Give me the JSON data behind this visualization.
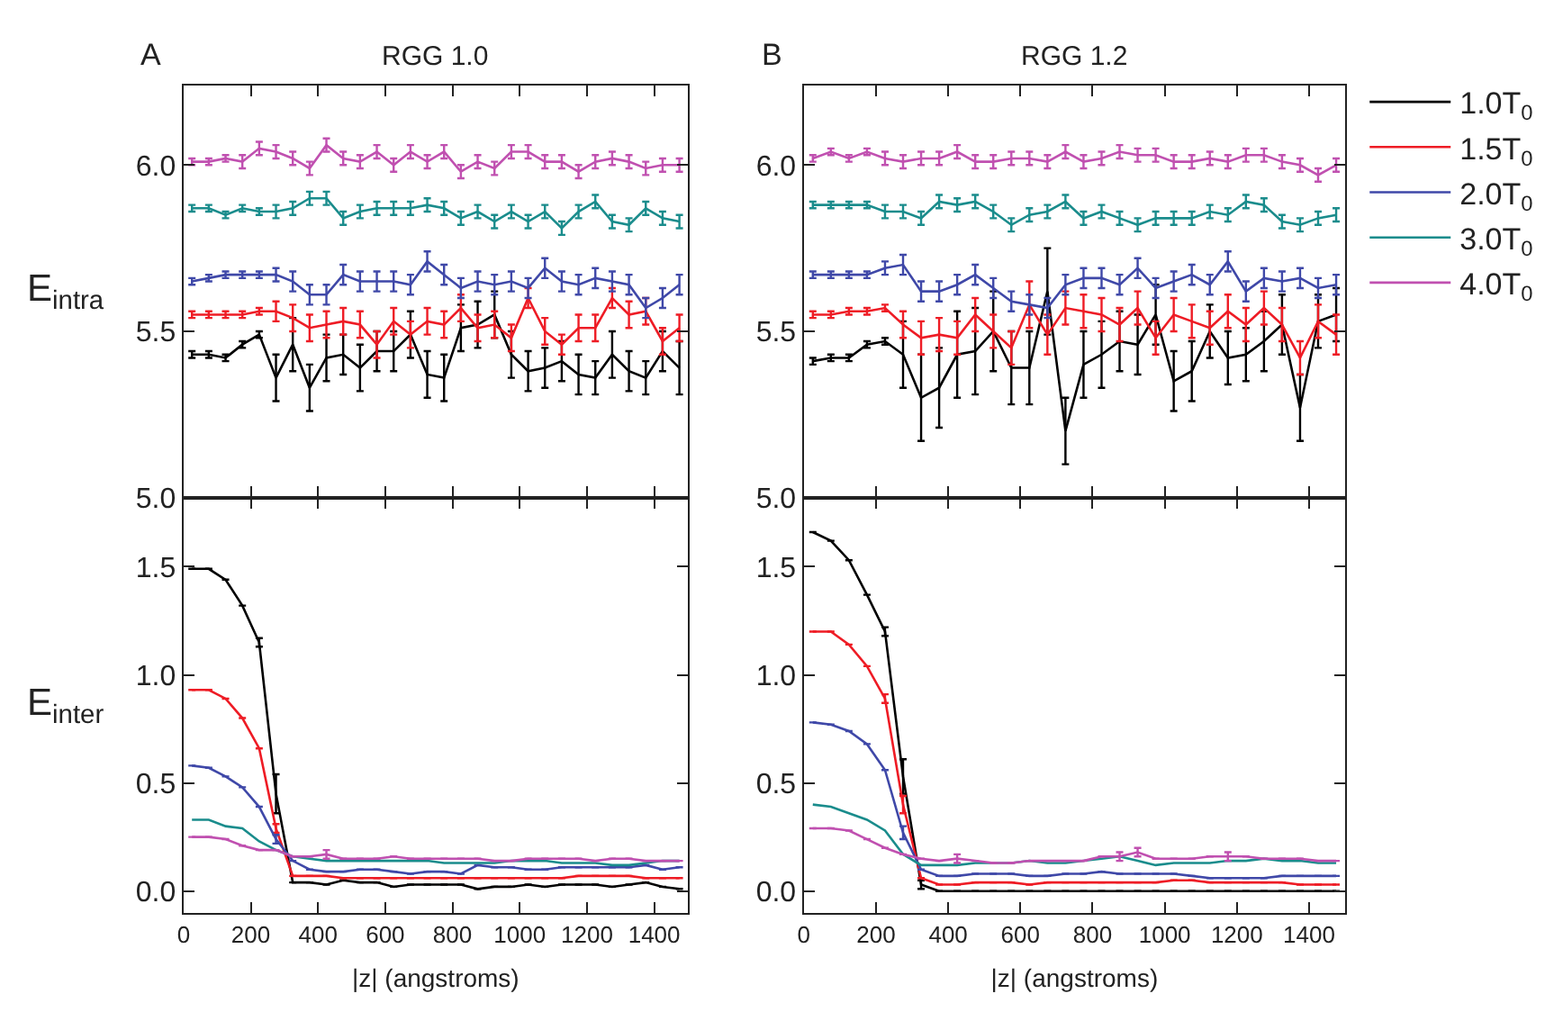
{
  "chart_data": [
    {
      "type": "line",
      "title": "RGG 1.0",
      "ylabel": "E$_{intra}$",
      "annotations": [
        "A"
      ],
      "legend": "right",
      "marker": "none",
      "line_style": "solid",
      "tick_labels": "y",
      "x": [
        25,
        75,
        125,
        175,
        225,
        275,
        325,
        375,
        425,
        475,
        525,
        575,
        625,
        675,
        725,
        775,
        825,
        875,
        925,
        975,
        1025,
        1075,
        1125,
        1175,
        1225,
        1275,
        1325,
        1375,
        1425,
        1475
      ],
      "xlim": [
        0,
        1500
      ],
      "xticks": [
        0,
        200,
        400,
        600,
        800,
        1000,
        1200,
        1400
      ],
      "ylim": [
        5.0,
        6.24
      ],
      "yticks": [
        {
          "value": 5.0,
          "label": "5.0"
        },
        5.5,
        {
          "value": 6.0,
          "label": "6.0"
        }
      ],
      "series": [
        {
          "name": "1.0T$_{0}$",
          "color": "#000000",
          "values": [
            5.43,
            5.43,
            5.42,
            5.46,
            5.49,
            5.36,
            5.46,
            5.33,
            5.42,
            5.43,
            5.39,
            5.44,
            5.44,
            5.49,
            5.37,
            5.36,
            5.51,
            5.52,
            5.55,
            5.43,
            5.38,
            5.39,
            5.41,
            5.37,
            5.36,
            5.43,
            5.38,
            5.36,
            5.44,
            5.39
          ],
          "errors": [
            0.01,
            0.01,
            0.01,
            0.01,
            0.01,
            0.07,
            0.08,
            0.07,
            0.07,
            0.06,
            0.07,
            0.06,
            0.06,
            0.07,
            0.07,
            0.07,
            0.07,
            0.07,
            0.07,
            0.07,
            0.06,
            0.06,
            0.06,
            0.06,
            0.05,
            0.07,
            0.06,
            0.05,
            0.06,
            0.08
          ]
        },
        {
          "name": "1.5T$_{0}$",
          "color": "#ee1c25",
          "values": [
            5.55,
            5.55,
            5.55,
            5.55,
            5.56,
            5.56,
            5.54,
            5.51,
            5.52,
            5.53,
            5.52,
            5.46,
            5.53,
            5.49,
            5.53,
            5.52,
            5.57,
            5.51,
            5.52,
            5.48,
            5.6,
            5.5,
            5.46,
            5.51,
            5.51,
            5.6,
            5.55,
            5.56,
            5.47,
            5.51
          ],
          "errors": [
            0.01,
            0.01,
            0.01,
            0.01,
            0.01,
            0.03,
            0.04,
            0.04,
            0.04,
            0.04,
            0.04,
            0.04,
            0.04,
            0.04,
            0.04,
            0.04,
            0.04,
            0.04,
            0.04,
            0.04,
            0.03,
            0.04,
            0.03,
            0.04,
            0.04,
            0.03,
            0.04,
            0.04,
            0.04,
            0.04
          ]
        },
        {
          "name": "2.0T$_{0}$",
          "color": "#3f48a8",
          "values": [
            5.65,
            5.66,
            5.67,
            5.67,
            5.67,
            5.67,
            5.65,
            5.61,
            5.61,
            5.67,
            5.65,
            5.65,
            5.65,
            5.64,
            5.71,
            5.67,
            5.63,
            5.65,
            5.64,
            5.65,
            5.63,
            5.69,
            5.65,
            5.64,
            5.66,
            5.65,
            5.64,
            5.57,
            5.6,
            5.64
          ],
          "errors": [
            0.01,
            0.01,
            0.01,
            0.01,
            0.01,
            0.02,
            0.03,
            0.03,
            0.03,
            0.03,
            0.03,
            0.03,
            0.03,
            0.03,
            0.03,
            0.03,
            0.03,
            0.03,
            0.03,
            0.03,
            0.03,
            0.03,
            0.03,
            0.03,
            0.03,
            0.03,
            0.03,
            0.03,
            0.03,
            0.03
          ]
        },
        {
          "name": "3.0T$_{0}$",
          "color": "#1a8c8c",
          "values": [
            5.87,
            5.87,
            5.85,
            5.87,
            5.86,
            5.86,
            5.87,
            5.9,
            5.9,
            5.84,
            5.86,
            5.87,
            5.87,
            5.87,
            5.88,
            5.87,
            5.84,
            5.86,
            5.83,
            5.86,
            5.83,
            5.86,
            5.81,
            5.86,
            5.89,
            5.83,
            5.82,
            5.87,
            5.84,
            5.83
          ],
          "errors": [
            0.01,
            0.01,
            0.01,
            0.01,
            0.01,
            0.02,
            0.02,
            0.02,
            0.02,
            0.02,
            0.02,
            0.02,
            0.02,
            0.02,
            0.02,
            0.02,
            0.02,
            0.02,
            0.02,
            0.02,
            0.02,
            0.02,
            0.02,
            0.02,
            0.02,
            0.02,
            0.02,
            0.02,
            0.02,
            0.02
          ]
        },
        {
          "name": "4.0T$_{0}$",
          "color": "#c050b0",
          "values": [
            6.01,
            6.01,
            6.02,
            6.01,
            6.05,
            6.04,
            6.02,
            5.99,
            6.06,
            6.02,
            6.01,
            6.04,
            6.0,
            6.04,
            6.01,
            6.04,
            5.98,
            6.01,
            5.99,
            6.04,
            6.04,
            6.01,
            6.01,
            5.98,
            6.01,
            6.02,
            6.01,
            5.99,
            6.0,
            6.0
          ],
          "errors": [
            0.01,
            0.01,
            0.01,
            0.02,
            0.02,
            0.02,
            0.02,
            0.02,
            0.02,
            0.02,
            0.02,
            0.02,
            0.02,
            0.02,
            0.02,
            0.02,
            0.02,
            0.02,
            0.02,
            0.02,
            0.02,
            0.02,
            0.02,
            0.02,
            0.02,
            0.02,
            0.02,
            0.02,
            0.02,
            0.02
          ]
        }
      ]
    },
    {
      "type": "line",
      "title": "RGG 1.2",
      "annotations": [
        "B"
      ],
      "marker": "none",
      "line_style": "solid",
      "tick_labels": "y",
      "x": [
        25,
        75,
        125,
        175,
        225,
        275,
        325,
        375,
        425,
        475,
        525,
        575,
        625,
        675,
        725,
        775,
        825,
        875,
        925,
        975,
        1025,
        1075,
        1125,
        1175,
        1225,
        1275,
        1325,
        1375,
        1425,
        1475
      ],
      "xlim": [
        0,
        1500
      ],
      "xticks": [
        0,
        200,
        400,
        600,
        800,
        1000,
        1200,
        1400
      ],
      "ylim": [
        5.0,
        6.24
      ],
      "yticks": [
        {
          "value": 5.0,
          "label": "5.0"
        },
        5.5,
        {
          "value": 6.0,
          "label": "6.0"
        }
      ],
      "series": [
        {
          "color": "#000000",
          "values": [
            5.41,
            5.42,
            5.42,
            5.46,
            5.47,
            5.43,
            5.3,
            5.33,
            5.43,
            5.44,
            5.5,
            5.39,
            5.39,
            5.62,
            5.2,
            5.4,
            5.43,
            5.47,
            5.46,
            5.55,
            5.35,
            5.38,
            5.5,
            5.42,
            5.43,
            5.47,
            5.52,
            5.27,
            5.53,
            5.55
          ],
          "errors": [
            0.01,
            0.01,
            0.01,
            0.01,
            0.01,
            0.1,
            0.13,
            0.12,
            0.13,
            0.13,
            0.12,
            0.11,
            0.11,
            0.13,
            0.1,
            0.1,
            0.1,
            0.09,
            0.09,
            0.09,
            0.09,
            0.09,
            0.08,
            0.08,
            0.08,
            0.09,
            0.09,
            0.1,
            0.08,
            0.08
          ]
        },
        {
          "color": "#ee1c25",
          "values": [
            5.55,
            5.55,
            5.56,
            5.56,
            5.57,
            5.52,
            5.48,
            5.49,
            5.48,
            5.55,
            5.5,
            5.45,
            5.58,
            5.49,
            5.57,
            5.56,
            5.55,
            5.52,
            5.57,
            5.48,
            5.55,
            5.53,
            5.51,
            5.56,
            5.52,
            5.57,
            5.52,
            5.42,
            5.53,
            5.49
          ],
          "errors": [
            0.01,
            0.01,
            0.01,
            0.01,
            0.01,
            0.04,
            0.05,
            0.05,
            0.05,
            0.05,
            0.05,
            0.05,
            0.07,
            0.06,
            0.05,
            0.05,
            0.05,
            0.05,
            0.05,
            0.05,
            0.05,
            0.05,
            0.05,
            0.05,
            0.05,
            0.05,
            0.05,
            0.05,
            0.05,
            0.06
          ]
        },
        {
          "color": "#3f48a8",
          "values": [
            5.67,
            5.67,
            5.67,
            5.67,
            5.69,
            5.7,
            5.62,
            5.62,
            5.64,
            5.67,
            5.63,
            5.59,
            5.58,
            5.57,
            5.64,
            5.66,
            5.66,
            5.64,
            5.69,
            5.63,
            5.65,
            5.67,
            5.64,
            5.71,
            5.62,
            5.66,
            5.65,
            5.66,
            5.63,
            5.64
          ],
          "errors": [
            0.01,
            0.01,
            0.01,
            0.01,
            0.02,
            0.03,
            0.03,
            0.03,
            0.03,
            0.03,
            0.03,
            0.03,
            0.03,
            0.03,
            0.03,
            0.03,
            0.03,
            0.03,
            0.03,
            0.03,
            0.03,
            0.03,
            0.03,
            0.03,
            0.03,
            0.03,
            0.03,
            0.03,
            0.03,
            0.03
          ]
        },
        {
          "color": "#1a8c8c",
          "values": [
            5.88,
            5.88,
            5.88,
            5.88,
            5.86,
            5.86,
            5.84,
            5.89,
            5.88,
            5.89,
            5.86,
            5.82,
            5.85,
            5.86,
            5.89,
            5.84,
            5.86,
            5.84,
            5.82,
            5.84,
            5.84,
            5.84,
            5.86,
            5.85,
            5.89,
            5.88,
            5.83,
            5.82,
            5.84,
            5.85
          ],
          "errors": [
            0.01,
            0.01,
            0.01,
            0.01,
            0.02,
            0.02,
            0.02,
            0.02,
            0.02,
            0.02,
            0.02,
            0.02,
            0.02,
            0.02,
            0.02,
            0.02,
            0.02,
            0.02,
            0.02,
            0.02,
            0.02,
            0.02,
            0.02,
            0.02,
            0.02,
            0.02,
            0.02,
            0.02,
            0.02,
            0.02
          ]
        },
        {
          "color": "#c050b0",
          "values": [
            6.02,
            6.04,
            6.02,
            6.04,
            6.02,
            6.01,
            6.02,
            6.02,
            6.04,
            6.01,
            6.01,
            6.02,
            6.02,
            6.01,
            6.04,
            6.01,
            6.02,
            6.04,
            6.03,
            6.03,
            6.01,
            6.01,
            6.02,
            6.01,
            6.03,
            6.03,
            6.01,
            6.0,
            5.97,
            6.0
          ],
          "errors": [
            0.01,
            0.01,
            0.01,
            0.01,
            0.02,
            0.02,
            0.02,
            0.02,
            0.02,
            0.02,
            0.02,
            0.02,
            0.02,
            0.02,
            0.02,
            0.02,
            0.02,
            0.02,
            0.02,
            0.02,
            0.02,
            0.02,
            0.02,
            0.02,
            0.02,
            0.02,
            0.02,
            0.02,
            0.02,
            0.02
          ]
        }
      ]
    },
    {
      "type": "line",
      "xlabel": "|z| (angstroms)",
      "ylabel": "E$_{inter}$",
      "marker": "none",
      "line_style": "solid",
      "x": [
        25,
        75,
        125,
        175,
        225,
        275,
        325,
        375,
        425,
        475,
        525,
        575,
        625,
        675,
        725,
        775,
        825,
        875,
        925,
        975,
        1025,
        1075,
        1125,
        1175,
        1225,
        1275,
        1325,
        1375,
        1425,
        1475
      ],
      "xlim": [
        0,
        1500
      ],
      "xticks": [
        0,
        200,
        400,
        600,
        800,
        1000,
        1200,
        1400
      ],
      "ylim": [
        -0.1,
        1.82
      ],
      "yticks": [
        {
          "value": 0.0,
          "label": "0.0"
        },
        0.5,
        {
          "value": 1.0,
          "label": "1.0"
        },
        1.5
      ],
      "series": [
        {
          "color": "#000000",
          "values": [
            1.49,
            1.49,
            1.44,
            1.32,
            1.15,
            0.45,
            0.04,
            0.04,
            0.03,
            0.05,
            0.04,
            0.04,
            0.02,
            0.03,
            0.03,
            0.03,
            0.03,
            0.01,
            0.02,
            0.02,
            0.03,
            0.02,
            0.03,
            0.03,
            0.03,
            0.02,
            0.03,
            0.04,
            0.02,
            0.01
          ],
          "errors": [
            null,
            null,
            null,
            null,
            0.02,
            0.09,
            null,
            null,
            null,
            null,
            null,
            null,
            null,
            null,
            null,
            null,
            null,
            null,
            null,
            null,
            null,
            null,
            null,
            null,
            null,
            null,
            null,
            null,
            null,
            null
          ]
        },
        {
          "color": "#ee1c25",
          "values": [
            0.93,
            0.93,
            0.89,
            0.8,
            0.66,
            0.29,
            0.07,
            0.07,
            0.07,
            0.06,
            0.06,
            0.06,
            0.06,
            0.06,
            0.06,
            0.06,
            0.06,
            0.06,
            0.06,
            0.06,
            0.06,
            0.06,
            0.06,
            0.07,
            0.07,
            0.07,
            0.07,
            0.06,
            0.06,
            0.06
          ],
          "errors": [
            null,
            null,
            null,
            null,
            null,
            0.02,
            null,
            null,
            null,
            null,
            null,
            null,
            null,
            null,
            null,
            null,
            null,
            null,
            null,
            null,
            null,
            null,
            null,
            null,
            null,
            null,
            null,
            null,
            null,
            null
          ]
        },
        {
          "color": "#3f48a8",
          "values": [
            0.58,
            0.57,
            0.53,
            0.48,
            0.39,
            0.24,
            0.14,
            0.1,
            0.09,
            0.09,
            0.1,
            0.1,
            0.09,
            0.08,
            0.09,
            0.09,
            0.08,
            0.12,
            0.11,
            0.11,
            0.1,
            0.1,
            0.11,
            0.11,
            0.11,
            0.11,
            0.11,
            0.12,
            0.1,
            0.11
          ],
          "errors": [
            null,
            null,
            null,
            null,
            null,
            0.02,
            null,
            null,
            null,
            null,
            null,
            null,
            null,
            null,
            null,
            null,
            null,
            null,
            null,
            null,
            null,
            null,
            null,
            null,
            null,
            null,
            null,
            null,
            null,
            null
          ]
        },
        {
          "color": "#1a8c8c",
          "values": [
            0.33,
            0.33,
            0.3,
            0.29,
            0.23,
            0.19,
            0.16,
            0.15,
            0.14,
            0.14,
            0.14,
            0.14,
            0.14,
            0.14,
            0.14,
            0.13,
            0.13,
            0.13,
            0.13,
            0.14,
            0.14,
            0.14,
            0.13,
            0.13,
            0.13,
            0.12,
            0.12,
            0.13,
            0.14,
            0.14
          ]
        },
        {
          "color": "#c050b0",
          "values": [
            0.25,
            0.25,
            0.24,
            0.21,
            0.19,
            0.19,
            0.16,
            0.16,
            0.17,
            0.15,
            0.15,
            0.15,
            0.16,
            0.15,
            0.15,
            0.15,
            0.15,
            0.15,
            0.14,
            0.14,
            0.15,
            0.15,
            0.15,
            0.15,
            0.14,
            0.15,
            0.15,
            0.14,
            0.14,
            0.14
          ],
          "errors": [
            null,
            null,
            null,
            null,
            null,
            null,
            null,
            null,
            0.02,
            null,
            null,
            null,
            null,
            null,
            null,
            null,
            null,
            null,
            null,
            null,
            null,
            null,
            null,
            null,
            null,
            null,
            null,
            null,
            null,
            null
          ]
        }
      ]
    },
    {
      "type": "line",
      "xlabel": "|z| (angstroms)",
      "marker": "none",
      "line_style": "solid",
      "x": [
        25,
        75,
        125,
        175,
        225,
        275,
        325,
        375,
        425,
        475,
        525,
        575,
        625,
        675,
        725,
        775,
        825,
        875,
        925,
        975,
        1025,
        1075,
        1125,
        1175,
        1225,
        1275,
        1325,
        1375,
        1425,
        1475
      ],
      "xlim": [
        0,
        1500
      ],
      "xticks": [
        0,
        200,
        400,
        600,
        800,
        1000,
        1200,
        1400
      ],
      "ylim": [
        -0.1,
        1.82
      ],
      "yticks": [
        {
          "value": 0.0,
          "label": "0.0"
        },
        0.5,
        {
          "value": 1.0,
          "label": "1.0"
        },
        1.5
      ],
      "series": [
        {
          "color": "#000000",
          "values": [
            1.66,
            1.62,
            1.53,
            1.37,
            1.2,
            0.53,
            0.03,
            0.0,
            0.0,
            0.0,
            0.0,
            0.0,
            0.0,
            0.0,
            0.0,
            0.0,
            0.0,
            0.0,
            0.0,
            0.0,
            0.0,
            0.0,
            0.0,
            0.0,
            0.0,
            0.0,
            0.0,
            0.0,
            0.0,
            0.0
          ],
          "errors": [
            null,
            null,
            null,
            null,
            0.02,
            0.08,
            0.02,
            null,
            null,
            null,
            null,
            null,
            null,
            null,
            null,
            null,
            null,
            null,
            null,
            null,
            null,
            null,
            null,
            null,
            null,
            null,
            null,
            null,
            null,
            null
          ]
        },
        {
          "color": "#ee1c25",
          "values": [
            1.2,
            1.2,
            1.14,
            1.04,
            0.89,
            0.4,
            0.06,
            0.03,
            0.03,
            0.04,
            0.04,
            0.04,
            0.03,
            0.04,
            0.04,
            0.04,
            0.04,
            0.04,
            0.04,
            0.04,
            0.05,
            0.05,
            0.04,
            0.04,
            0.04,
            0.04,
            0.04,
            0.03,
            0.03,
            0.03
          ],
          "errors": [
            null,
            null,
            null,
            null,
            0.02,
            0.04,
            null,
            null,
            null,
            null,
            null,
            null,
            null,
            null,
            null,
            null,
            null,
            null,
            null,
            null,
            null,
            null,
            null,
            null,
            null,
            null,
            null,
            null,
            null,
            null
          ]
        },
        {
          "color": "#3f48a8",
          "values": [
            0.78,
            0.77,
            0.74,
            0.68,
            0.56,
            0.27,
            0.1,
            0.07,
            0.07,
            0.08,
            0.08,
            0.08,
            0.07,
            0.07,
            0.08,
            0.08,
            0.09,
            0.08,
            0.08,
            0.08,
            0.08,
            0.07,
            0.06,
            0.06,
            0.06,
            0.06,
            0.07,
            0.07,
            0.07,
            0.07
          ],
          "errors": [
            null,
            null,
            null,
            null,
            null,
            0.03,
            null,
            null,
            null,
            null,
            null,
            null,
            null,
            null,
            null,
            null,
            null,
            null,
            null,
            null,
            null,
            null,
            null,
            null,
            null,
            null,
            null,
            null,
            null,
            null
          ]
        },
        {
          "color": "#1a8c8c",
          "values": [
            0.4,
            0.39,
            0.36,
            0.33,
            0.28,
            0.17,
            0.12,
            0.12,
            0.12,
            0.13,
            0.13,
            0.13,
            0.14,
            0.13,
            0.13,
            0.14,
            0.15,
            0.16,
            0.14,
            0.12,
            0.13,
            0.13,
            0.13,
            0.14,
            0.14,
            0.15,
            0.14,
            0.14,
            0.13,
            0.13
          ]
        },
        {
          "color": "#c050b0",
          "values": [
            0.29,
            0.29,
            0.28,
            0.24,
            0.2,
            0.17,
            0.15,
            0.14,
            0.15,
            0.14,
            0.13,
            0.13,
            0.14,
            0.14,
            0.14,
            0.14,
            0.16,
            0.16,
            0.18,
            0.15,
            0.15,
            0.15,
            0.16,
            0.16,
            0.16,
            0.15,
            0.15,
            0.15,
            0.14,
            0.14
          ],
          "errors": [
            null,
            null,
            null,
            null,
            null,
            null,
            null,
            null,
            0.02,
            null,
            null,
            null,
            null,
            null,
            null,
            null,
            null,
            0.02,
            0.02,
            null,
            null,
            null,
            null,
            0.02,
            null,
            null,
            null,
            null,
            null,
            null
          ]
        }
      ]
    }
  ]
}
